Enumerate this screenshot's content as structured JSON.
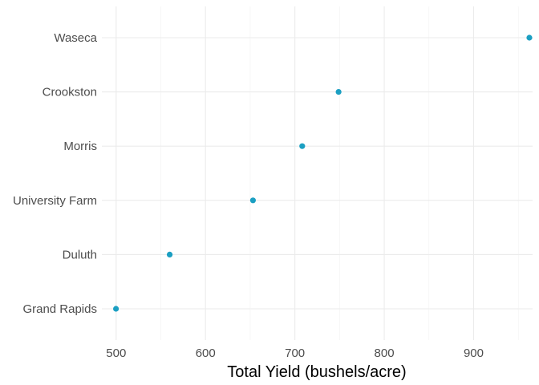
{
  "chart_data": {
    "type": "scatter",
    "title": "",
    "xlabel": "Total Yield (bushels/acre)",
    "ylabel": "",
    "categories": [
      "Grand Rapids",
      "Duluth",
      "University Farm",
      "Morris",
      "Crookston",
      "Waseca"
    ],
    "values": [
      499.8,
      559.9,
      653.1,
      708.2,
      748.9,
      962.4
    ],
    "xlim": [
      484,
      966
    ],
    "xticks": [
      500,
      600,
      700,
      800,
      900
    ],
    "grid": true,
    "legend": "none",
    "colors": {
      "point": "#1b9fc2",
      "grid": "#ebebeb",
      "tick_text": "#4d4d4d",
      "title_text": "#000000"
    }
  }
}
